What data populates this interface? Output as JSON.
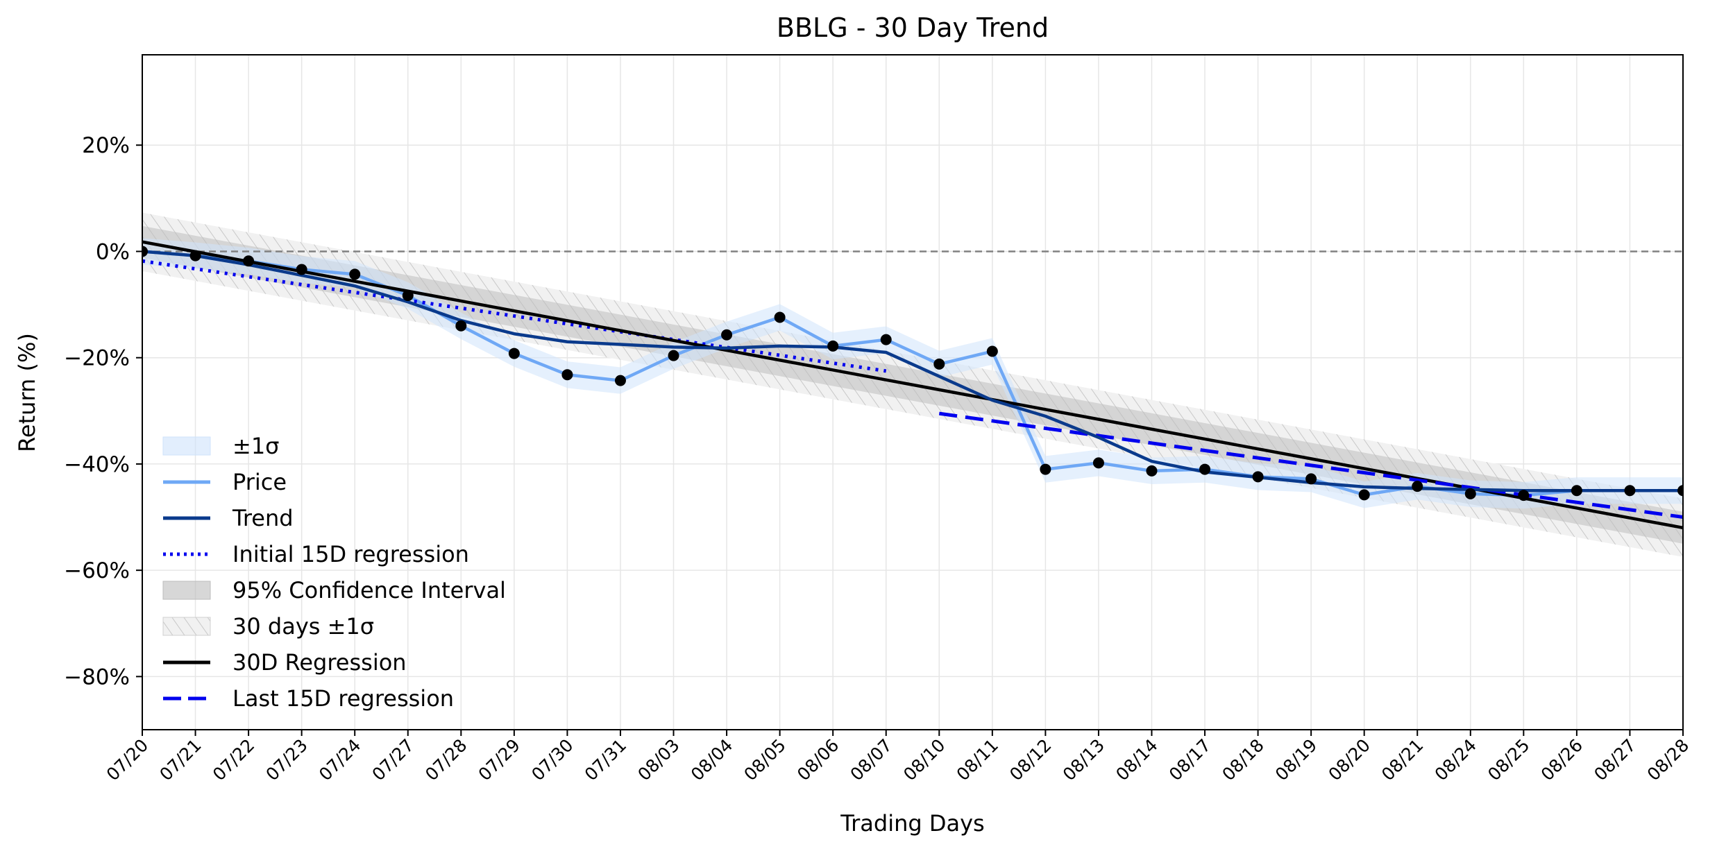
{
  "chart_data": {
    "type": "line",
    "title": "BBLG - 30 Day Trend",
    "xlabel": "Trading Days",
    "ylabel": "Return (%)",
    "ylim": [
      -90,
      37
    ],
    "yticks": [
      20,
      0,
      -20,
      -40,
      -60,
      -80
    ],
    "ytick_labels": [
      "20%",
      "0%",
      "−20%",
      "−40%",
      "−60%",
      "−80%"
    ],
    "grid": true,
    "legend_position": "lower-left",
    "categories": [
      "07/20",
      "07/21",
      "07/22",
      "07/23",
      "07/24",
      "07/27",
      "07/28",
      "07/29",
      "07/30",
      "07/31",
      "08/03",
      "08/04",
      "08/05",
      "08/06",
      "08/07",
      "08/10",
      "08/11",
      "08/12",
      "08/13",
      "08/14",
      "08/17",
      "08/18",
      "08/19",
      "08/20",
      "08/21",
      "08/24",
      "08/25",
      "08/26",
      "08/27",
      "08/28"
    ],
    "reference_line": {
      "y": 0,
      "style": "dashed",
      "color": "#808080"
    },
    "series": [
      {
        "name": "Price",
        "color": "#6fa8f5",
        "values": [
          0,
          -0.8,
          -1.8,
          -3.4,
          -4.3,
          -8.3,
          -14.0,
          -19.2,
          -23.2,
          -24.3,
          -19.6,
          -15.7,
          -12.4,
          -17.8,
          -16.6,
          -21.2,
          -18.8,
          -41.0,
          -39.8,
          -41.3,
          -41.0,
          -42.4,
          -42.8,
          -45.8,
          -44.2,
          -45.6,
          -45.9,
          -45.0,
          -45.0,
          -45.0
        ]
      },
      {
        "name": "Trend",
        "color": "#0a3a8c",
        "values": [
          0,
          -0.8,
          -2.5,
          -4.5,
          -6.5,
          -9.5,
          -13.0,
          -15.5,
          -17.0,
          -17.5,
          -18.0,
          -18.2,
          -17.8,
          -18.0,
          -19.0,
          -23.5,
          -28.0,
          -31.0,
          -35.0,
          -39.5,
          -41.5,
          -42.5,
          -43.5,
          -44.3,
          -44.6,
          -44.8,
          -45.0,
          -45.0,
          -45.0,
          -45.0
        ]
      },
      {
        "name": "Initial 15D regression",
        "color": "#0000ee",
        "style": "dotted",
        "x_range": [
          0,
          14
        ],
        "y_range": [
          -1.8,
          -22.5
        ]
      },
      {
        "name": "30D Regression",
        "color": "#000000",
        "x_range": [
          0,
          29
        ],
        "y_range": [
          1.8,
          -52.0
        ]
      },
      {
        "name": "Last 15D regression",
        "color": "#0000ee",
        "style": "dashed",
        "x_range": [
          15,
          29
        ],
        "y_range": [
          -30.5,
          -50.0
        ]
      }
    ],
    "bands": [
      {
        "name": "±1σ",
        "around": "Price",
        "half_width": 2.5,
        "color": "#cfe3fb"
      },
      {
        "name": "95% Confidence Interval",
        "around": "30D Regression",
        "half_width": 3.0,
        "color": "#bdbdbd"
      },
      {
        "name": "30 days ±1σ",
        "around": "30D Regression",
        "half_width": 5.5,
        "color": "#e2e2e2",
        "hatch": true
      }
    ],
    "legend": [
      {
        "label": "±1σ",
        "kind": "patch",
        "color": "#cfe3fb"
      },
      {
        "label": "Price",
        "kind": "line",
        "color": "#6fa8f5",
        "dash": ""
      },
      {
        "label": "Trend",
        "kind": "line",
        "color": "#0a3a8c",
        "dash": ""
      },
      {
        "label": "Initial 15D regression",
        "kind": "line",
        "color": "#0000ee",
        "dash": "4,6"
      },
      {
        "label": "95% Confidence Interval",
        "kind": "patch",
        "color": "#bdbdbd"
      },
      {
        "label": "30 days ±1σ",
        "kind": "hatch",
        "color": "#e2e2e2"
      },
      {
        "label": "30D Regression",
        "kind": "line",
        "color": "#000000",
        "dash": ""
      },
      {
        "label": "Last 15D regression",
        "kind": "line",
        "color": "#0000ee",
        "dash": "26,10"
      }
    ]
  }
}
